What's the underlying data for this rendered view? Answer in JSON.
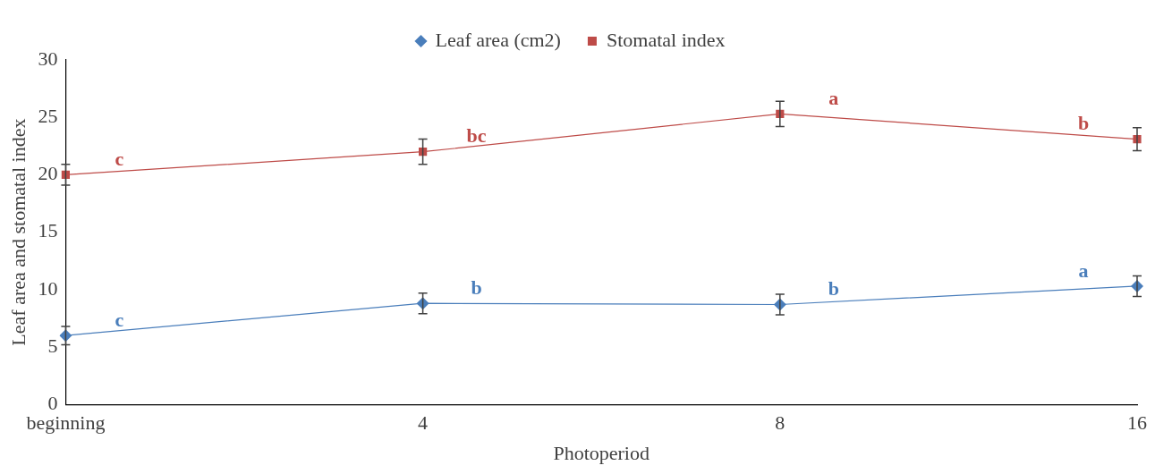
{
  "chart_data": {
    "type": "line",
    "xlabel": "Photoperiod",
    "ylabel": "Leaf area and stomatal index",
    "categories": [
      "beginning",
      "4",
      "8",
      "16"
    ],
    "series": [
      {
        "name": "Leaf area (cm2)",
        "color": "#4a7ebb",
        "marker": "diamond",
        "values": [
          6.0,
          8.8,
          8.7,
          10.3
        ],
        "errors": [
          0.8,
          0.9,
          0.9,
          0.9
        ]
      },
      {
        "name": "Stomatal index",
        "color": "#be4b48",
        "marker": "square",
        "values": [
          20.0,
          22.0,
          25.3,
          23.1
        ],
        "errors": [
          0.9,
          1.1,
          1.1,
          1.0
        ]
      }
    ],
    "ylim": [
      0,
      30
    ],
    "yticks": [
      0,
      5,
      10,
      15,
      20,
      25,
      30
    ],
    "grid": false,
    "legend": "top",
    "line_style": "solid",
    "annotations": [
      {
        "text": "c",
        "x": "beginning",
        "y": 20.0
      },
      {
        "text": "bc",
        "x": "4",
        "y": 22.0
      },
      {
        "text": "a",
        "x": "8",
        "y": 25.3
      },
      {
        "text": "b",
        "x": "16",
        "y": 23.1
      },
      {
        "text": "c",
        "x": "beginning",
        "y": 6.0
      },
      {
        "text": "b",
        "x": "4",
        "y": 8.8
      },
      {
        "text": "b",
        "x": "8",
        "y": 8.7
      },
      {
        "text": "a",
        "x": "16",
        "y": 10.3
      }
    ]
  }
}
